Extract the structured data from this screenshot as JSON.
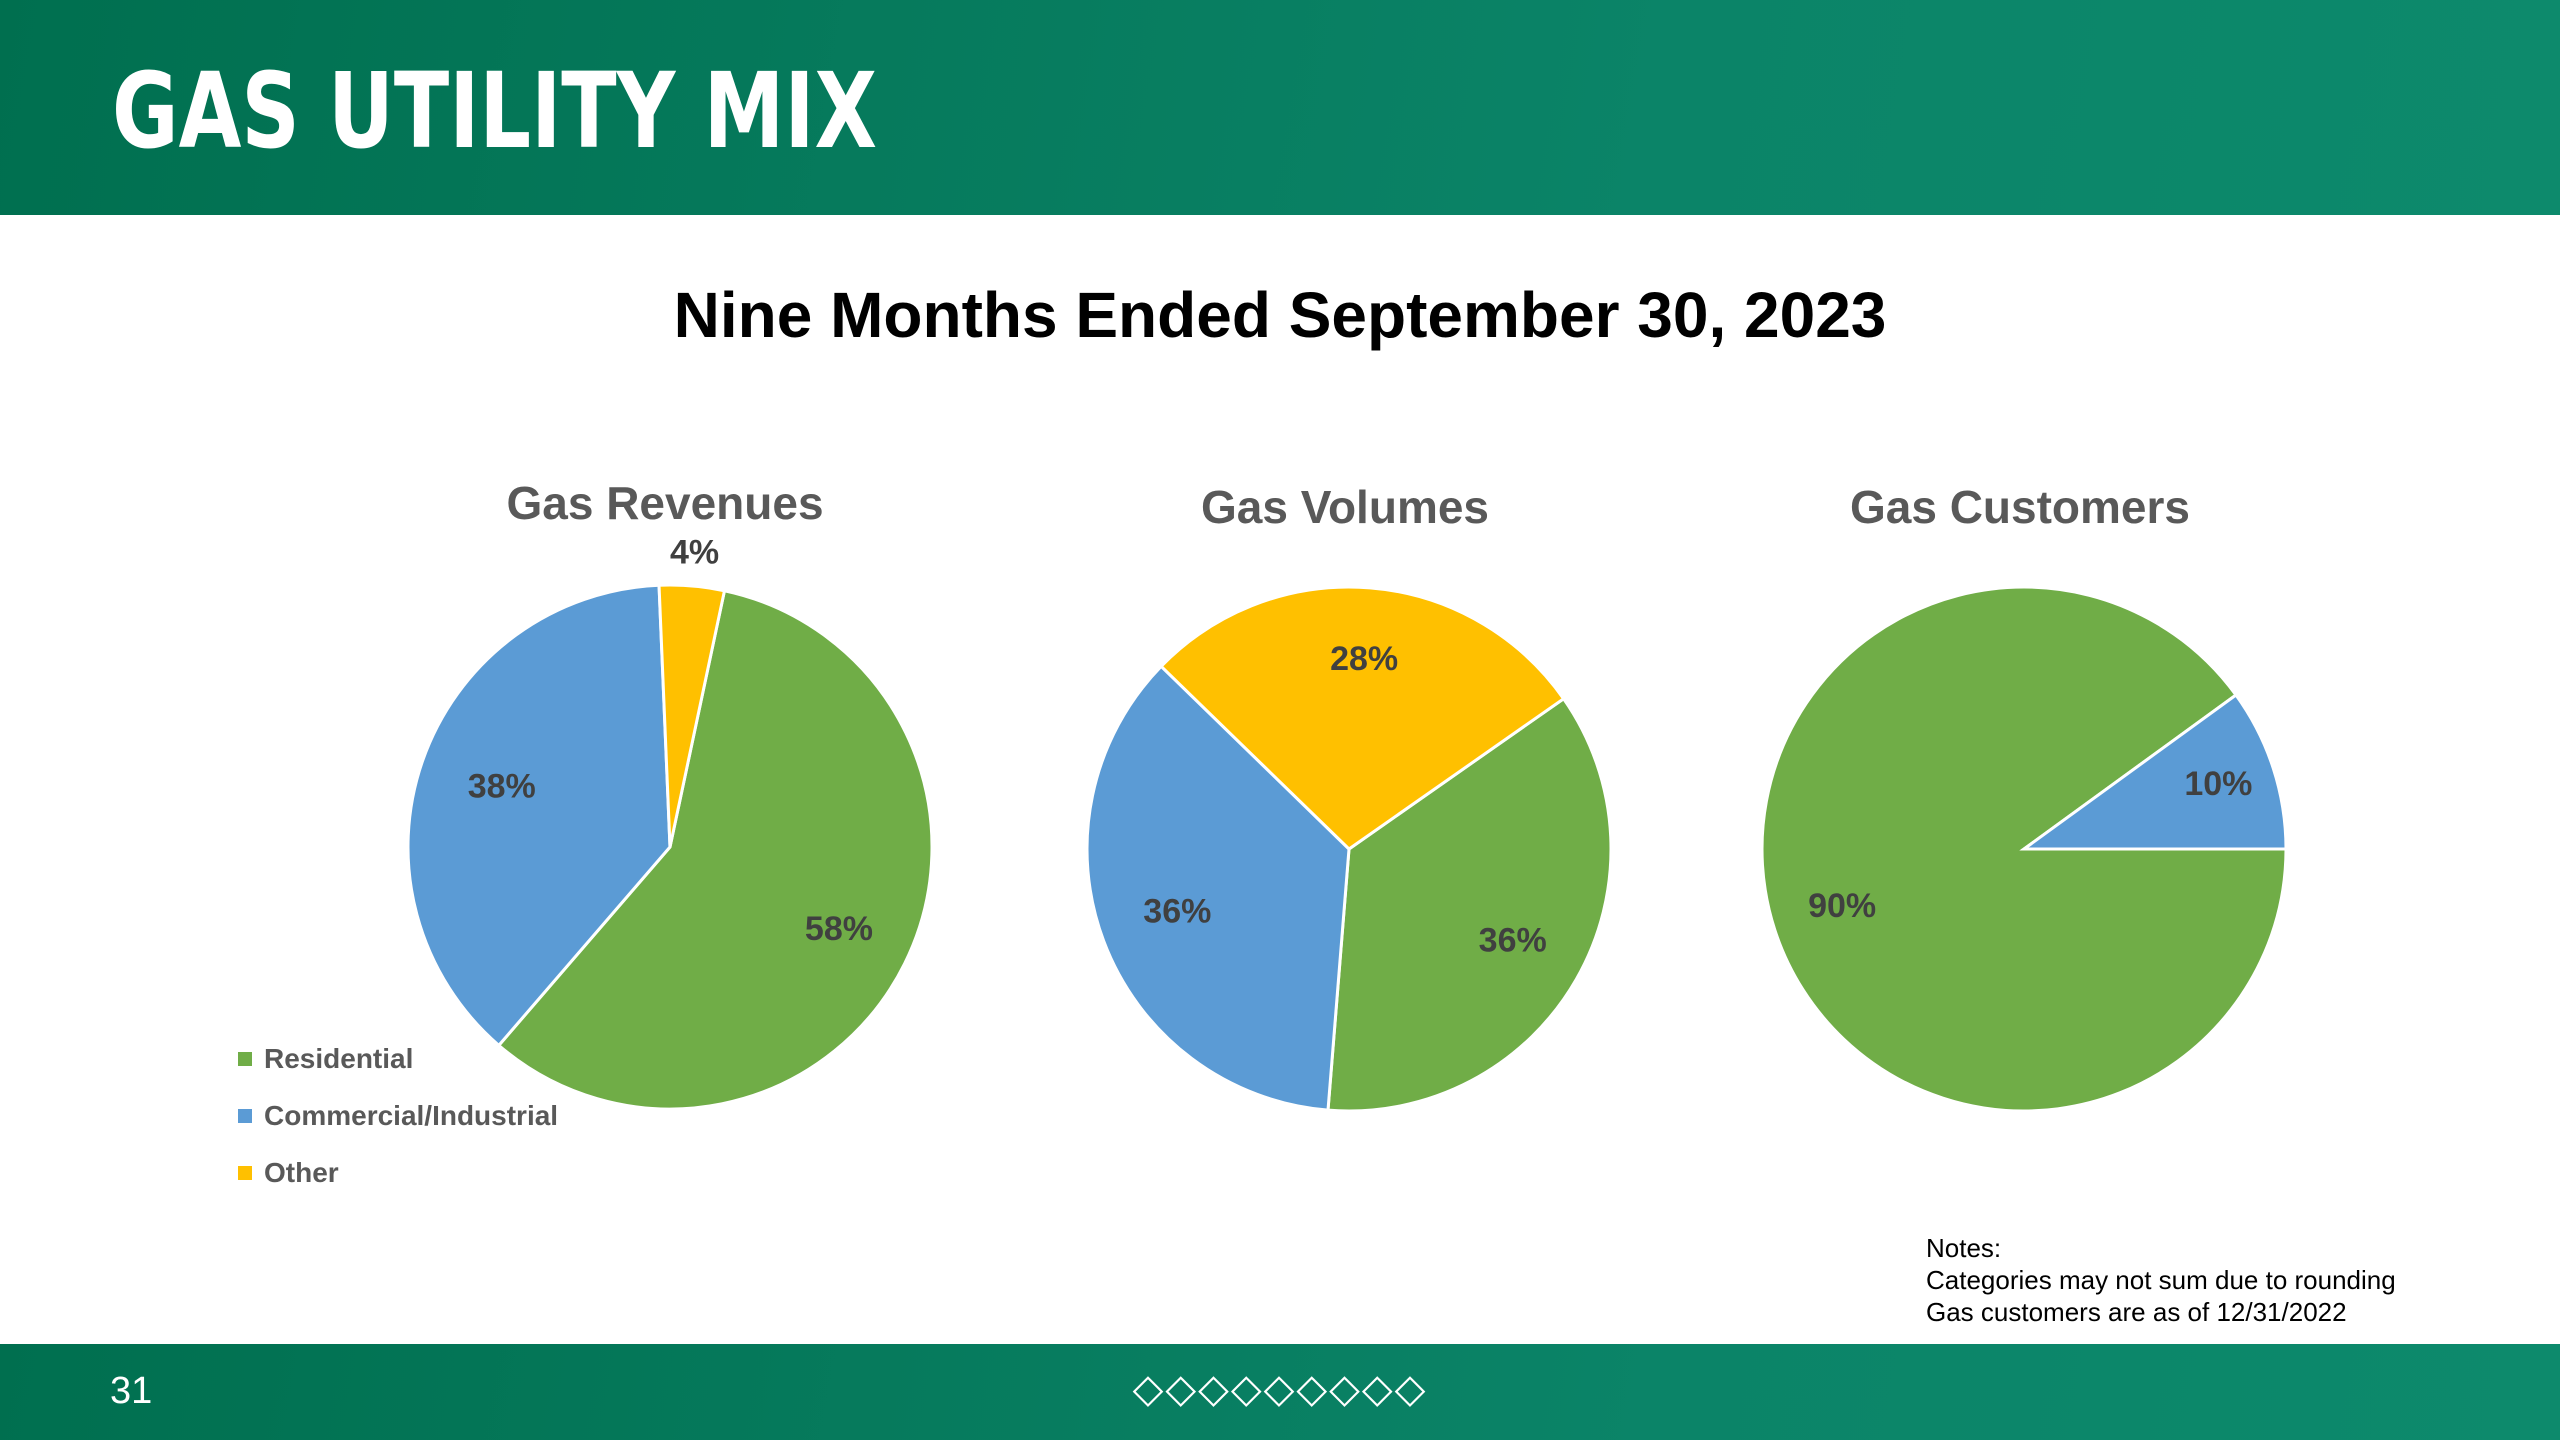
{
  "header": {
    "title": "GAS UTILITY MIX"
  },
  "subtitle": "Nine Months Ended September 30, 2023",
  "colors": {
    "residential": "#70ad47",
    "commercial": "#5b9bd5",
    "other": "#ffc000",
    "label": "#404040"
  },
  "chart_data": [
    {
      "type": "pie",
      "title": "Gas Revenues",
      "categories": [
        "Residential",
        "Commercial/Industrial",
        "Other"
      ],
      "values": [
        58,
        38,
        4
      ],
      "labels": [
        "58%",
        "38%",
        "4%"
      ]
    },
    {
      "type": "pie",
      "title": "Gas Volumes",
      "categories": [
        "Residential",
        "Commercial/Industrial",
        "Other"
      ],
      "values": [
        36,
        36,
        28
      ],
      "labels": [
        "36%",
        "36%",
        "28%"
      ]
    },
    {
      "type": "pie",
      "title": "Gas Customers",
      "categories": [
        "Residential",
        "Commercial/Industrial"
      ],
      "values": [
        90,
        10
      ],
      "labels": [
        "90%",
        "10%"
      ]
    }
  ],
  "legend": {
    "items": [
      "Residential",
      "Commercial/Industrial",
      "Other"
    ]
  },
  "notes": {
    "heading": "Notes:",
    "line1": "Categories may not sum due to rounding",
    "line2": "Gas customers are as of 12/31/2022"
  },
  "footer": {
    "page_number": "31",
    "ornament": "◇◇◇◇◇◇◇◇◇"
  }
}
